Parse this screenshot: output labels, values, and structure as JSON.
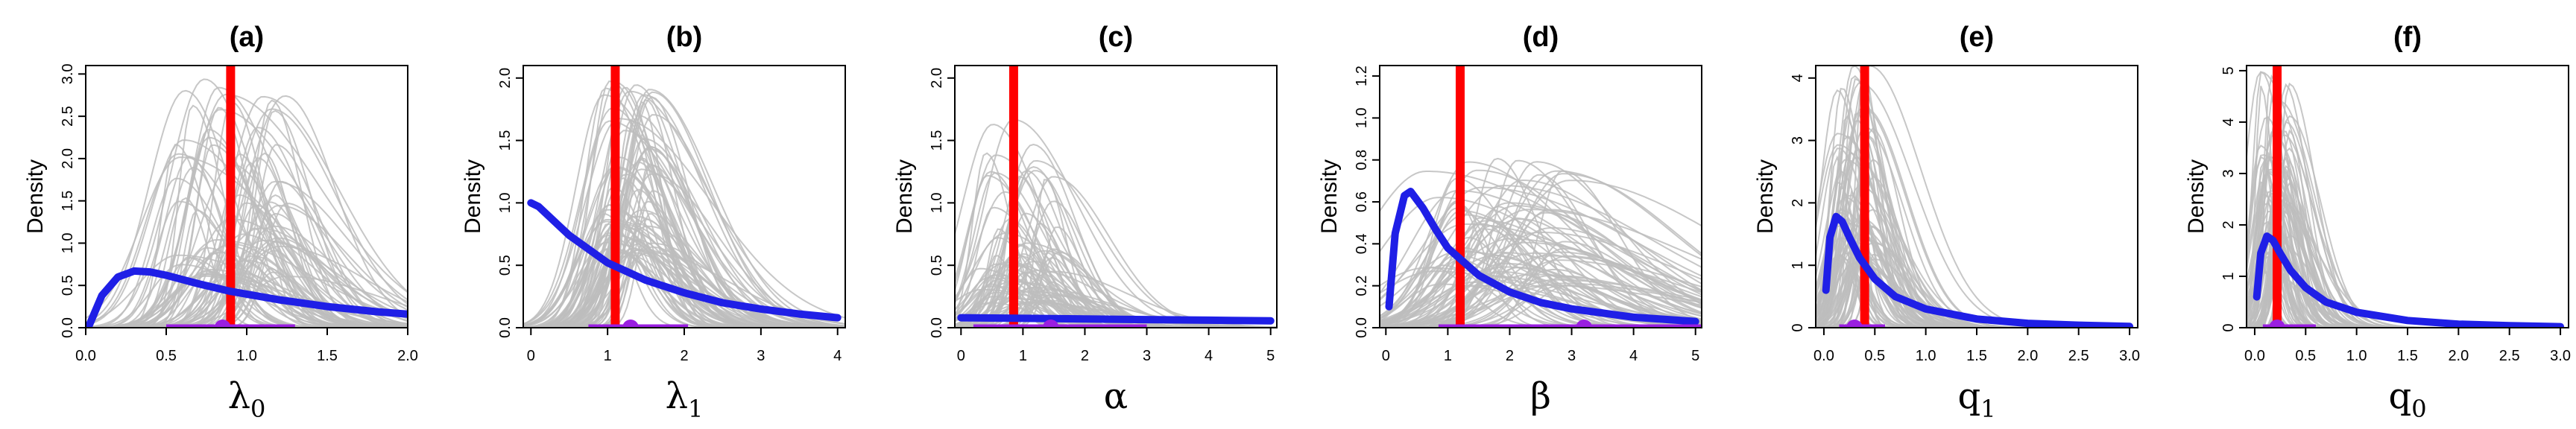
{
  "colors": {
    "sample_curves": "#bdbdbd",
    "prior_curve": "#1f1fe6",
    "truth_line": "#ff0000",
    "interval": "#9a1fe0"
  },
  "chart_data": [
    {
      "type": "line",
      "title": "(a)",
      "xlabel": "λ",
      "xlabel_sub": "0",
      "ylabel": "Density",
      "xlim": [
        0,
        2
      ],
      "ylim": [
        0,
        3.1
      ],
      "xticks": [
        "0.0",
        "0.5",
        "1.0",
        "1.5",
        "2.0"
      ],
      "xtick_values": [
        0,
        0.5,
        1,
        1.5,
        2
      ],
      "yticks": [
        "0.0",
        "0.5",
        "1.0",
        "1.5",
        "2.0",
        "2.5",
        "3.0"
      ],
      "ytick_values": [
        0,
        0.5,
        1,
        1.5,
        2,
        2.5,
        3
      ],
      "truth_value": 0.9,
      "interval": {
        "low": 0.5,
        "point": 0.85,
        "high": 1.3
      },
      "prior": {
        "x": [
          0.02,
          0.1,
          0.2,
          0.3,
          0.4,
          0.5,
          0.7,
          0.9,
          1.2,
          1.5,
          1.8,
          2.0
        ],
        "y": [
          0.02,
          0.38,
          0.6,
          0.67,
          0.66,
          0.62,
          0.52,
          0.43,
          0.33,
          0.25,
          0.19,
          0.16
        ]
      },
      "samples": {
        "count": 80,
        "center_range": [
          0.55,
          1.25
        ],
        "width_range": [
          0.08,
          0.25
        ],
        "peak_range": [
          0.6,
          3.0
        ]
      }
    },
    {
      "type": "line",
      "title": "(b)",
      "xlabel": "λ",
      "xlabel_sub": "1",
      "ylabel": "Density",
      "xlim": [
        -0.1,
        4.1
      ],
      "ylim": [
        0,
        2.1
      ],
      "xticks": [
        "0",
        "1",
        "2",
        "3",
        "4"
      ],
      "xtick_values": [
        0,
        1,
        2,
        3,
        4
      ],
      "yticks": [
        "0.0",
        "0.5",
        "1.0",
        "1.5",
        "2.0"
      ],
      "ytick_values": [
        0,
        0.5,
        1,
        1.5,
        2
      ],
      "truth_value": 1.1,
      "interval": {
        "low": 0.75,
        "point": 1.3,
        "high": 2.05
      },
      "prior": {
        "x": [
          0,
          0.1,
          0.5,
          1.0,
          1.5,
          2.0,
          2.5,
          3.0,
          3.5,
          4.0
        ],
        "y": [
          1.0,
          0.97,
          0.74,
          0.52,
          0.38,
          0.28,
          0.2,
          0.15,
          0.11,
          0.08
        ]
      },
      "samples": {
        "count": 80,
        "center_range": [
          0.95,
          1.6
        ],
        "width_range": [
          0.15,
          0.45
        ],
        "peak_range": [
          0.6,
          2.0
        ]
      }
    },
    {
      "type": "line",
      "title": "(c)",
      "xlabel": "α",
      "xlabel_sub": "",
      "ylabel": "Density",
      "xlim": [
        -0.1,
        5.1
      ],
      "ylim": [
        0,
        2.1
      ],
      "xticks": [
        "0",
        "1",
        "2",
        "3",
        "4",
        "5"
      ],
      "xtick_values": [
        0,
        1,
        2,
        3,
        4,
        5
      ],
      "yticks": [
        "0.0",
        "0.5",
        "1.0",
        "1.5",
        "2.0"
      ],
      "ytick_values": [
        0,
        0.5,
        1,
        1.5,
        2
      ],
      "truth_value": 0.85,
      "interval": {
        "low": 0.2,
        "point": 1.45,
        "high": 3.0
      },
      "prior": {
        "x": [
          0,
          1,
          2,
          3,
          4,
          5
        ],
        "y": [
          0.08,
          0.075,
          0.07,
          0.065,
          0.06,
          0.055
        ]
      },
      "samples": {
        "count": 80,
        "center_range": [
          0.25,
          1.6
        ],
        "width_range": [
          0.15,
          0.55
        ],
        "peak_range": [
          0.2,
          1.7
        ]
      }
    },
    {
      "type": "line",
      "title": "(d)",
      "xlabel": "β",
      "xlabel_sub": "",
      "ylabel": "Density",
      "xlim": [
        -0.1,
        5.1
      ],
      "ylim": [
        0,
        1.25
      ],
      "xticks": [
        "0",
        "1",
        "2",
        "3",
        "4",
        "5"
      ],
      "xtick_values": [
        0,
        1,
        2,
        3,
        4,
        5
      ],
      "yticks": [
        "0.0",
        "0.2",
        "0.4",
        "0.6",
        "0.8",
        "1.0",
        "1.2"
      ],
      "ytick_values": [
        0,
        0.2,
        0.4,
        0.6,
        0.8,
        1,
        1.2
      ],
      "truth_value": 1.2,
      "interval": {
        "low": 0.85,
        "point": 3.2,
        "high": 5.1
      },
      "prior": {
        "x": [
          0.05,
          0.15,
          0.3,
          0.4,
          0.6,
          0.8,
          1.0,
          1.5,
          2.0,
          2.5,
          3.0,
          4.0,
          5.0
        ],
        "y": [
          0.1,
          0.45,
          0.63,
          0.65,
          0.57,
          0.47,
          0.38,
          0.25,
          0.17,
          0.12,
          0.09,
          0.05,
          0.03
        ]
      },
      "samples": {
        "count": 80,
        "center_range": [
          0.6,
          3.0
        ],
        "width_range": [
          0.35,
          1.0
        ],
        "peak_range": [
          0.2,
          0.85
        ]
      }
    },
    {
      "type": "line",
      "title": "(e)",
      "xlabel": "q",
      "xlabel_sub": "1",
      "ylabel": "Density",
      "xlim": [
        -0.08,
        3.08
      ],
      "ylim": [
        0,
        4.2
      ],
      "xticks": [
        "0.0",
        "0.5",
        "1.0",
        "1.5",
        "2.0",
        "2.5",
        "3.0"
      ],
      "xtick_values": [
        0,
        0.5,
        1,
        1.5,
        2,
        2.5,
        3
      ],
      "yticks": [
        "0",
        "1",
        "2",
        "3",
        "4"
      ],
      "ytick_values": [
        0,
        1,
        2,
        3,
        4
      ],
      "truth_value": 0.4,
      "interval": {
        "low": 0.15,
        "point": 0.3,
        "high": 0.6
      },
      "prior": {
        "x": [
          0.02,
          0.06,
          0.12,
          0.18,
          0.25,
          0.35,
          0.5,
          0.7,
          1.0,
          1.5,
          2.0,
          2.5,
          3.0
        ],
        "y": [
          0.6,
          1.45,
          1.78,
          1.7,
          1.45,
          1.12,
          0.78,
          0.5,
          0.3,
          0.14,
          0.07,
          0.04,
          0.02
        ]
      },
      "samples": {
        "count": 80,
        "center_range": [
          0.12,
          0.5
        ],
        "width_range": [
          0.06,
          0.22
        ],
        "peak_range": [
          1.0,
          4.2
        ]
      }
    },
    {
      "type": "line",
      "title": "(f)",
      "xlabel": "q",
      "xlabel_sub": "0",
      "ylabel": "Density",
      "xlim": [
        -0.08,
        3.08
      ],
      "ylim": [
        0,
        5.1
      ],
      "xticks": [
        "0.0",
        "0.5",
        "1.0",
        "1.5",
        "2.0",
        "2.5",
        "3.0"
      ],
      "xtick_values": [
        0,
        0.5,
        1,
        1.5,
        2,
        2.5,
        3
      ],
      "yticks": [
        "0",
        "1",
        "2",
        "3",
        "4",
        "5"
      ],
      "ytick_values": [
        0,
        1,
        2,
        3,
        4,
        5
      ],
      "truth_value": 0.22,
      "interval": {
        "low": 0.08,
        "point": 0.22,
        "high": 0.6
      },
      "prior": {
        "x": [
          0.02,
          0.06,
          0.12,
          0.18,
          0.25,
          0.35,
          0.5,
          0.7,
          1.0,
          1.5,
          2.0,
          2.5,
          3.0
        ],
        "y": [
          0.6,
          1.45,
          1.78,
          1.7,
          1.45,
          1.12,
          0.78,
          0.5,
          0.3,
          0.14,
          0.07,
          0.04,
          0.02
        ]
      },
      "samples": {
        "count": 80,
        "center_range": [
          0.05,
          0.35
        ],
        "width_range": [
          0.04,
          0.16
        ],
        "peak_range": [
          1.0,
          5.1
        ]
      }
    }
  ]
}
